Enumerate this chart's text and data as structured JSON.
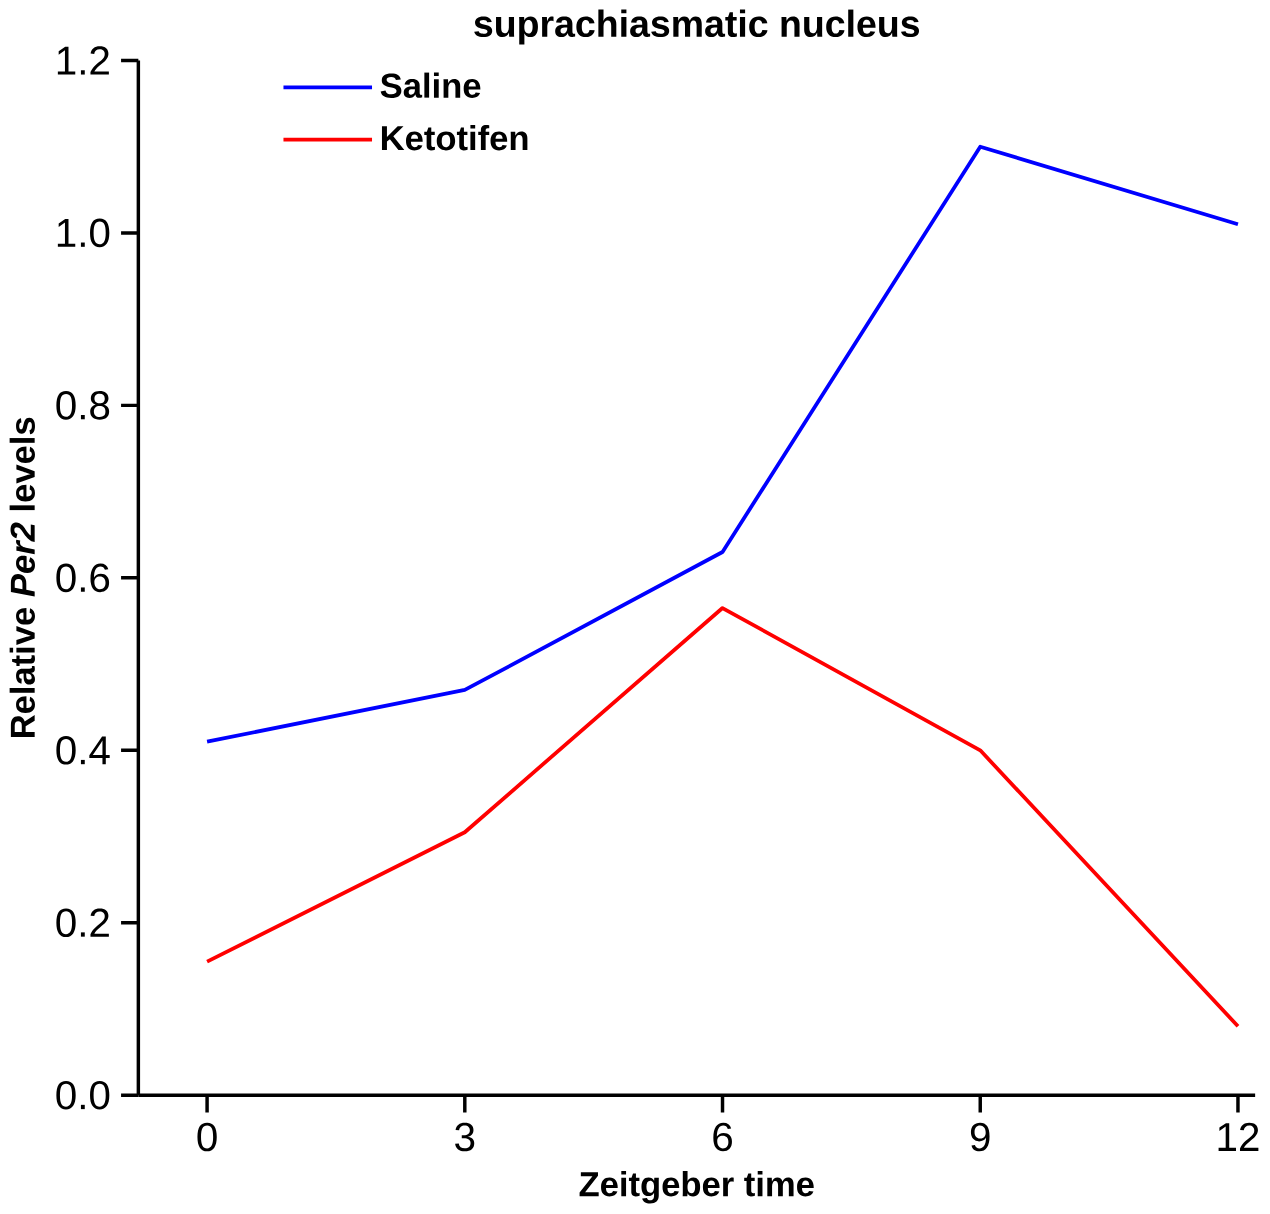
{
  "chart_data": {
    "type": "line",
    "title": "suprachiasmatic nucleus",
    "xlabel": "Zeitgeber time",
    "ylabel": "Relative *Per2* levels",
    "x": [
      0,
      3,
      6,
      9,
      12
    ],
    "series": [
      {
        "name": "Saline",
        "color": "#0000ff",
        "values": [
          0.41,
          0.47,
          0.63,
          1.1,
          1.01
        ]
      },
      {
        "name": "Ketotifen",
        "color": "#ff0000",
        "values": [
          0.155,
          0.305,
          0.565,
          0.4,
          0.08
        ]
      }
    ],
    "xlim": [
      -0.8,
      12.2
    ],
    "ylim": [
      0,
      1.2
    ],
    "xticks": [
      0,
      3,
      6,
      9,
      12
    ],
    "yticks": [
      {
        "value": 0,
        "label": "0.0"
      },
      {
        "value": 0.2,
        "label": "0.2"
      },
      {
        "value": 0.4,
        "label": "0.4"
      },
      {
        "value": 0.6,
        "label": "0.6"
      },
      {
        "value": 0.8,
        "label": "0.8"
      },
      {
        "value": 1.0,
        "label": "1.0"
      },
      {
        "value": 1.2,
        "label": "1.2"
      }
    ],
    "legend": "top left",
    "grid": false,
    "marker": "none",
    "line_style": "solid"
  }
}
